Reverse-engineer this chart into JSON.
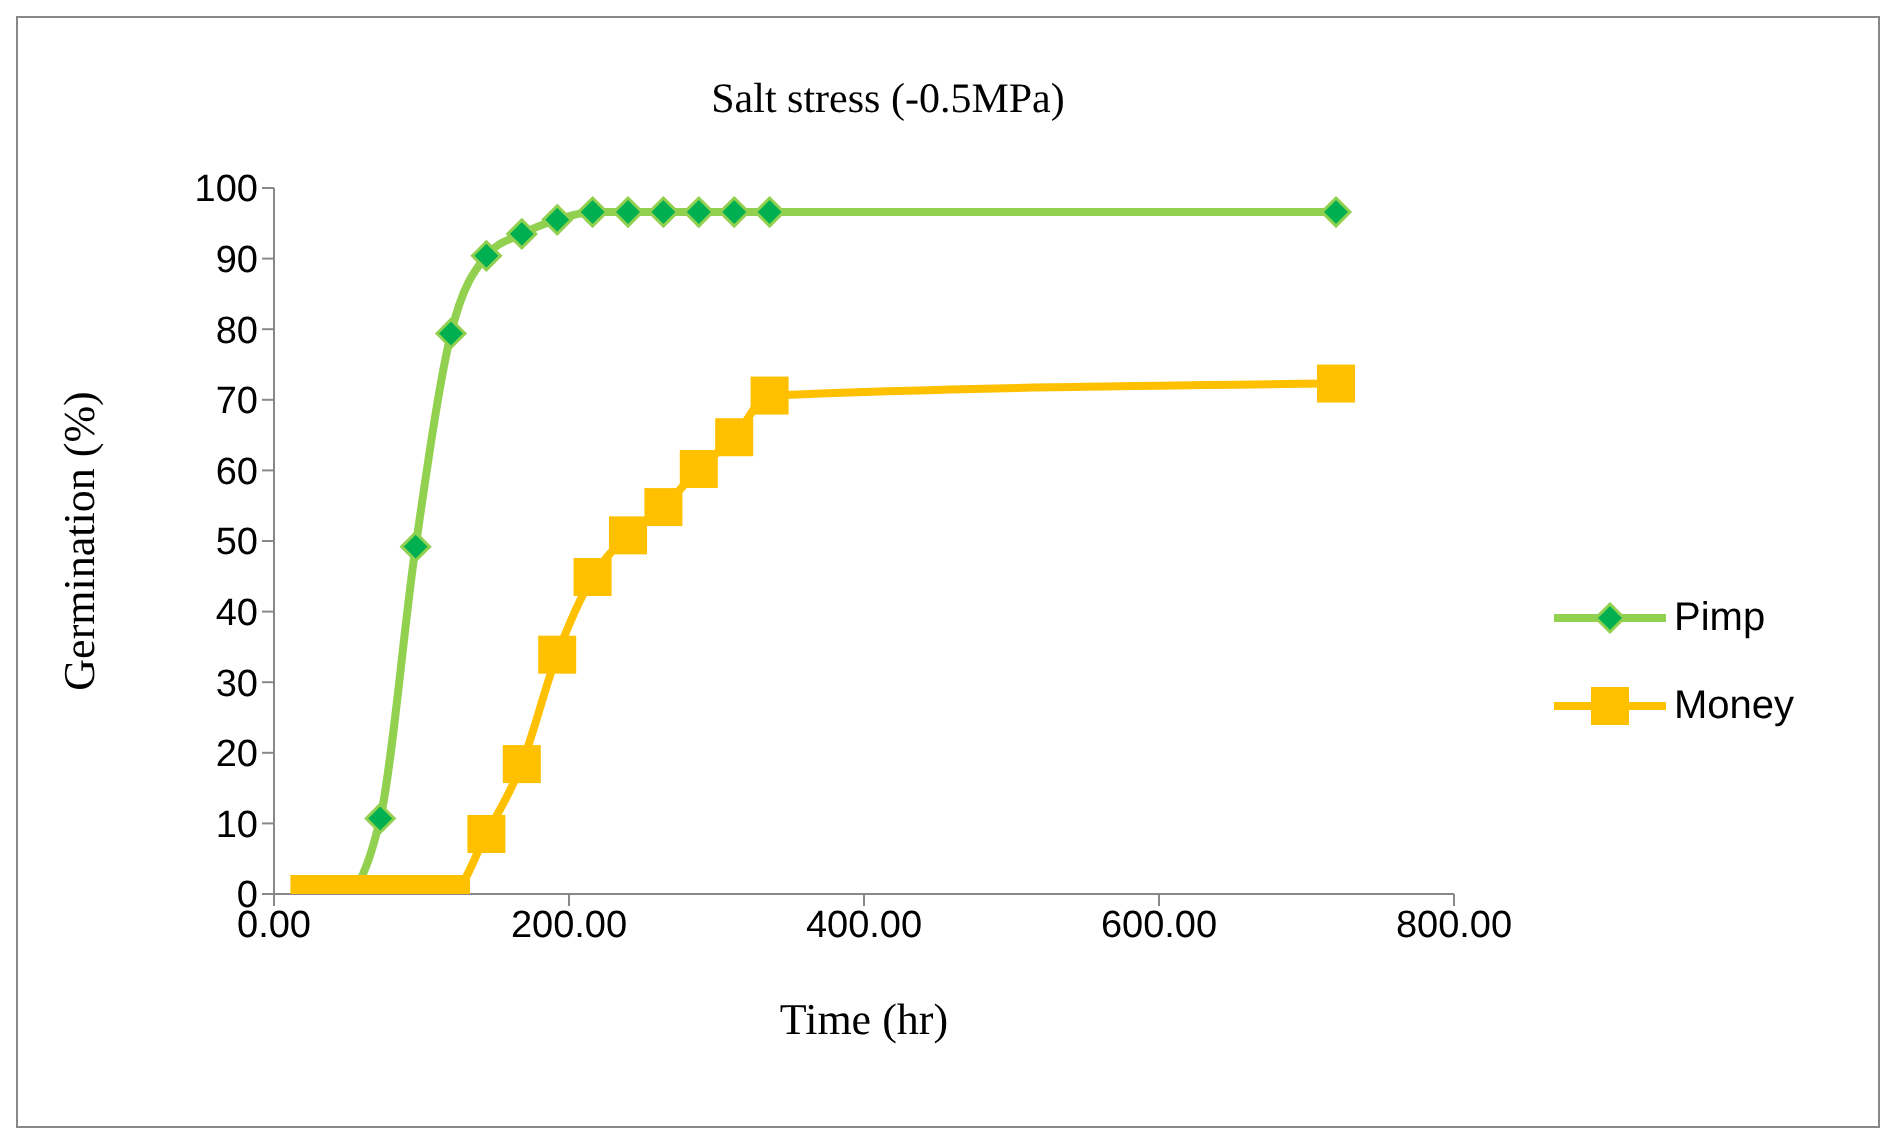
{
  "chart_data": {
    "type": "line",
    "title": "Salt stress (-0.5MPa)",
    "xlabel": "Time (hr)",
    "ylabel": "Germination (%)",
    "x": [
      24,
      48,
      72,
      96,
      120,
      144,
      168,
      192,
      216,
      240,
      264,
      288,
      312,
      336,
      720
    ],
    "series": [
      {
        "name": "Pimp",
        "color": "#92d050",
        "marker": "diamond",
        "values": [
          0,
          0,
          10.7,
          49.2,
          79.4,
          90.4,
          93.5,
          95.5,
          96.6,
          96.6,
          96.6,
          96.6,
          96.6,
          96.6,
          96.6
        ]
      },
      {
        "name": "Money",
        "color": "#ffc000",
        "marker": "square",
        "values": [
          0,
          0,
          0,
          0,
          0,
          8.5,
          18.4,
          33.9,
          44.9,
          50.8,
          54.8,
          60.2,
          64.7,
          70.6,
          72.3
        ]
      }
    ],
    "xlim": [
      0,
      800
    ],
    "xticks": [
      {
        "value": 0,
        "label": "0.00"
      },
      {
        "value": 200,
        "label": "200.00"
      },
      {
        "value": 400,
        "label": "400.00"
      },
      {
        "value": 600,
        "label": "600.00"
      },
      {
        "value": 800,
        "label": "800.00"
      }
    ],
    "ylim": [
      0,
      100
    ],
    "yticks": [
      0,
      10,
      20,
      30,
      40,
      50,
      60,
      70,
      80,
      90,
      100
    ],
    "grid": false,
    "legend": "right",
    "line_style": "solid"
  }
}
